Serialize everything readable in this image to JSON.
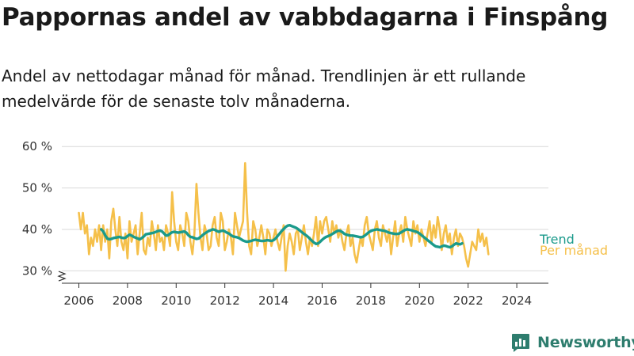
{
  "title": "Pappornas andel av vabbdagarna i Finspång",
  "subtitle": "Andel av nettodagar månad för månad. Trendlinjen är ett rullande medelvärde för de senaste tolv månaderna.",
  "logo": {
    "text": "Newsworthy",
    "color": "#2e7d6e",
    "icon": "bar-chart-logo-icon"
  },
  "chart_data": {
    "type": "line",
    "title": "",
    "xlabel": "",
    "ylabel": "",
    "xlim": [
      2005.3,
      2025.3
    ],
    "ylim": [
      27,
      61
    ],
    "y_axis_break": true,
    "grid": "horizontal",
    "x_ticks": [
      2006,
      2008,
      2010,
      2012,
      2014,
      2016,
      2018,
      2020,
      2022,
      2024
    ],
    "x_tick_labels": [
      "2006",
      "2008",
      "2010",
      "2012",
      "2014",
      "2016",
      "2018",
      "2020",
      "2022",
      "2024"
    ],
    "y_ticks": [
      30,
      40,
      50,
      60
    ],
    "y_tick_labels": [
      "30 %",
      "40 %",
      "50 %",
      "60 %"
    ],
    "legend": "right-end labels",
    "series": [
      {
        "name": "Per månad",
        "color": "#f5c04a",
        "x_start": 2006.0,
        "x_step": 0.08333,
        "values": [
          44,
          40,
          44,
          39,
          41,
          34,
          38,
          36,
          40,
          37,
          41,
          35,
          41,
          37,
          40,
          33,
          42,
          45,
          40,
          36,
          43,
          37,
          35,
          39,
          33,
          42,
          37,
          39,
          41,
          34,
          39,
          44,
          35,
          34,
          38,
          36,
          42,
          39,
          35,
          41,
          37,
          38,
          35,
          41,
          39,
          36,
          49,
          42,
          37,
          35,
          41,
          39,
          36,
          44,
          42,
          37,
          34,
          39,
          51,
          44,
          38,
          35,
          41,
          39,
          35,
          36,
          41,
          43,
          38,
          36,
          44,
          42,
          35,
          37,
          40,
          38,
          34,
          44,
          41,
          38,
          40,
          42,
          56,
          44,
          36,
          34,
          42,
          40,
          36,
          38,
          41,
          38,
          34,
          40,
          39,
          36,
          38,
          40,
          37,
          35,
          38,
          41,
          30,
          36,
          39,
          37,
          34,
          39,
          40,
          35,
          38,
          41,
          37,
          34,
          38,
          36,
          39,
          43,
          36,
          42,
          39,
          42,
          43,
          40,
          37,
          42,
          39,
          41,
          38,
          40,
          37,
          35,
          39,
          41,
          36,
          38,
          34,
          32,
          35,
          38,
          36,
          41,
          43,
          39,
          37,
          35,
          40,
          42,
          38,
          36,
          41,
          39,
          37,
          40,
          34,
          38,
          42,
          36,
          39,
          41,
          37,
          43,
          40,
          38,
          36,
          42,
          39,
          41,
          37,
          40,
          38,
          36,
          39,
          42,
          37,
          41,
          38,
          43,
          40,
          35,
          39,
          41,
          37,
          39,
          34,
          38,
          40,
          36,
          39,
          38,
          36,
          33,
          31,
          34,
          37,
          36,
          35,
          40,
          37,
          39,
          36,
          38,
          34
        ]
      },
      {
        "name": "Trend",
        "color": "#1a9a8b",
        "x_start": 2006.92,
        "x_step": 0.08333,
        "values": [
          40,
          39.5,
          38.5,
          37.8,
          37.6,
          37.7,
          37.9,
          38.0,
          38.1,
          38.2,
          38.0,
          37.9,
          38.0,
          38.4,
          38.7,
          38.5,
          38.2,
          38.0,
          37.8,
          37.6,
          37.9,
          38.3,
          38.8,
          38.9,
          39.0,
          39.1,
          39.2,
          39.4,
          39.6,
          39.7,
          39.5,
          39.0,
          38.5,
          38.6,
          39.0,
          39.3,
          39.4,
          39.3,
          39.2,
          39.3,
          39.4,
          39.5,
          39.2,
          38.6,
          38.2,
          38.1,
          37.9,
          37.7,
          37.8,
          38.2,
          38.6,
          39.0,
          39.3,
          39.6,
          39.8,
          40.0,
          39.9,
          39.6,
          39.4,
          39.6,
          39.7,
          39.5,
          39.2,
          39.0,
          38.6,
          38.3,
          38.2,
          38.1,
          37.9,
          37.6,
          37.3,
          37.1,
          37.0,
          37.1,
          37.2,
          37.4,
          37.5,
          37.4,
          37.3,
          37.2,
          37.2,
          37.3,
          37.4,
          37.3,
          37.2,
          37.4,
          37.8,
          38.4,
          39.0,
          39.6,
          40.1,
          40.6,
          40.9,
          41.0,
          40.8,
          40.6,
          40.4,
          40.1,
          39.7,
          39.3,
          38.9,
          38.6,
          38.2,
          37.7,
          37.2,
          36.8,
          36.5,
          36.6,
          37.0,
          37.5,
          37.9,
          38.2,
          38.4,
          38.6,
          38.9,
          39.2,
          39.5,
          39.7,
          39.6,
          39.3,
          38.9,
          38.7,
          38.6,
          38.5,
          38.5,
          38.4,
          38.3,
          38.2,
          38.1,
          38.2,
          38.5,
          38.9,
          39.3,
          39.6,
          39.8,
          39.9,
          40.0,
          39.9,
          39.8,
          39.7,
          39.6,
          39.4,
          39.2,
          39.1,
          39.0,
          38.9,
          38.9,
          39.0,
          39.3,
          39.6,
          39.9,
          40.0,
          39.9,
          39.8,
          39.6,
          39.5,
          39.3,
          39.0,
          38.6,
          38.2,
          37.8,
          37.4,
          37.0,
          36.6,
          36.2,
          35.9,
          35.8,
          35.7,
          35.9,
          36.1,
          36.0,
          35.8,
          35.7,
          35.9,
          36.3,
          36.6,
          36.5,
          36.4,
          36.6
        ]
      }
    ]
  }
}
